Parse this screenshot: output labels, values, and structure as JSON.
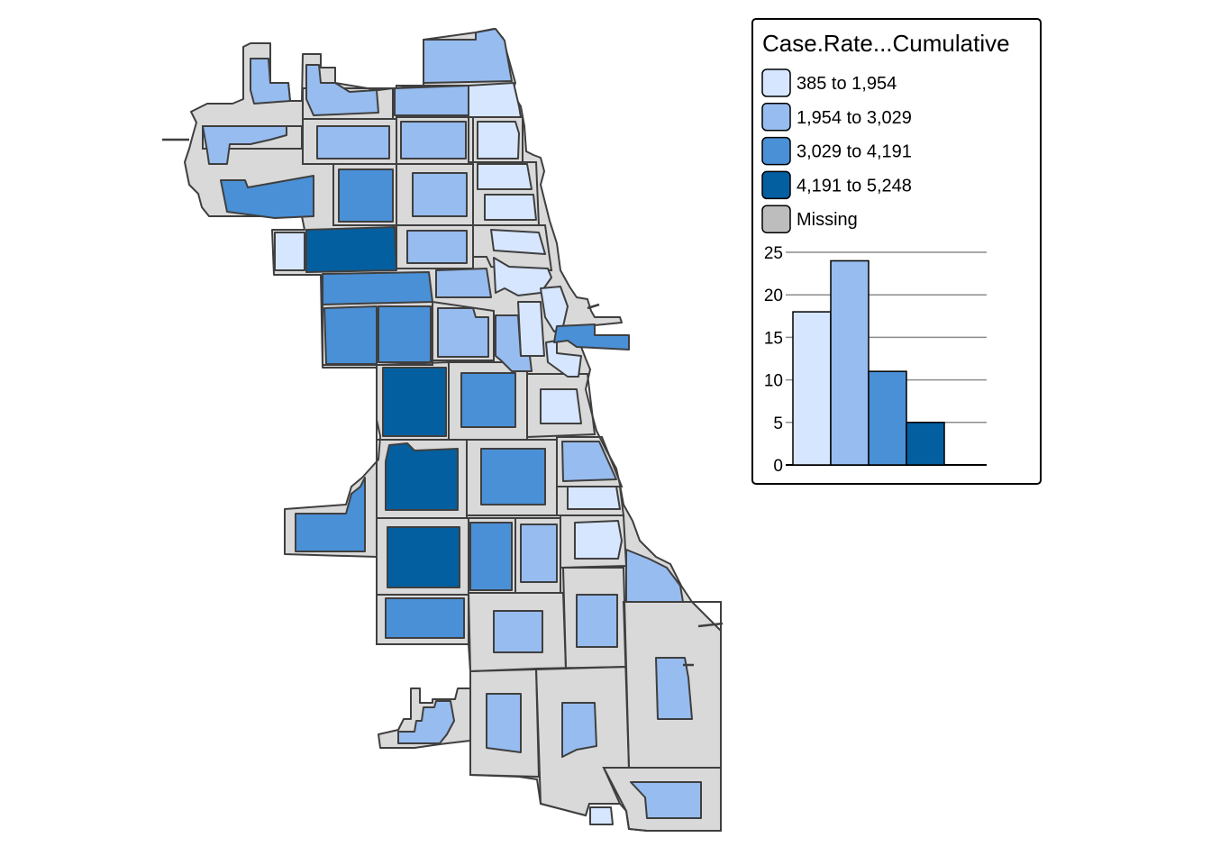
{
  "colors": {
    "missing": "#d9d9d9",
    "c1": "#d6e6ff",
    "c2": "#97bcef",
    "c3": "#4a90d6",
    "c4": "#035fa0",
    "legend_missing": "#bdbdbd"
  },
  "legend": {
    "title": "Case.Rate...Cumulative",
    "entries": [
      {
        "label": "385 to 1,954",
        "color_key": "c1"
      },
      {
        "label": "1,954 to 3,029",
        "color_key": "c2"
      },
      {
        "label": "3,029 to 4,191",
        "color_key": "c3"
      },
      {
        "label": "4,191 to 5,248",
        "color_key": "c4"
      },
      {
        "label": "Missing",
        "color_key": "legend_missing"
      }
    ]
  },
  "chart_data": {
    "type": "bar",
    "title": "",
    "xlabel": "",
    "ylabel": "",
    "categories": [
      "385 to 1,954",
      "1,954 to 3,029",
      "3,029 to 4,191",
      "4,191 to 5,248"
    ],
    "values": [
      18,
      24,
      11,
      5
    ],
    "ylim": [
      0,
      25
    ],
    "yticks": [
      "0",
      "5",
      "10",
      "15",
      "20",
      "25"
    ],
    "grid": true
  }
}
